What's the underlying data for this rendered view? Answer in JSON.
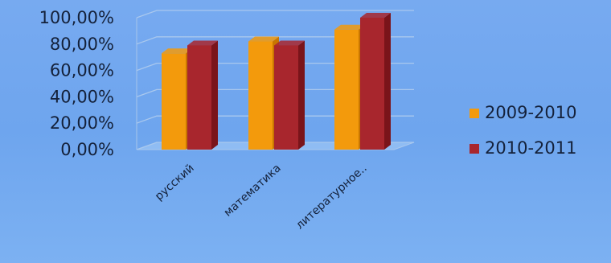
{
  "chart_data": {
    "type": "bar",
    "categories": [
      "русский",
      "математика",
      "литературное.."
    ],
    "series": [
      {
        "name": "2009-2010",
        "values": [
          73,
          82,
          91
        ],
        "color": "#f39a0c",
        "shade": "#c97600"
      },
      {
        "name": "2010-2011",
        "values": [
          79,
          79,
          100
        ],
        "color": "#a8262d",
        "shade": "#7a141a"
      }
    ],
    "y_ticks": [
      "0,00%",
      "20,00%",
      "40,00%",
      "60,00%",
      "80,00%",
      "100,00%"
    ],
    "ylim": [
      0,
      100
    ],
    "grid": true,
    "legend_position": "right"
  }
}
